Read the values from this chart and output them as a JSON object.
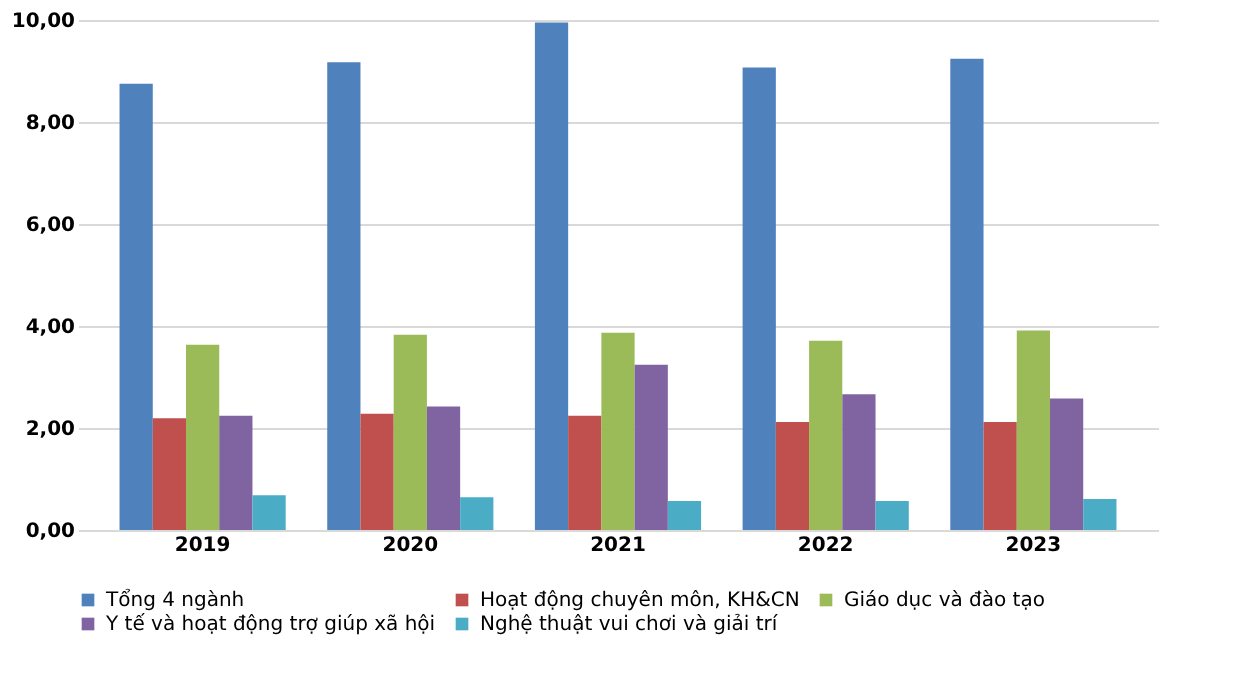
{
  "chart_data": {
    "type": "bar",
    "categories": [
      "2019",
      "2020",
      "2021",
      "2022",
      "2023"
    ],
    "series": [
      {
        "name": "Tổng 4 ngành",
        "color": "#4f81bd",
        "values": [
          8.75,
          9.17,
          9.95,
          9.07,
          9.24
        ]
      },
      {
        "name": "Hoạt động chuyên môn, KH&CN",
        "color": "#c0504d",
        "values": [
          2.19,
          2.28,
          2.24,
          2.12,
          2.12
        ]
      },
      {
        "name": "Giáo dục và đào tạo",
        "color": "#9bbb59",
        "values": [
          3.63,
          3.83,
          3.87,
          3.71,
          3.91
        ]
      },
      {
        "name": "Y tế và hoạt động trợ giúp xã hội",
        "color": "#8064a2",
        "values": [
          2.24,
          2.42,
          3.24,
          2.66,
          2.58
        ]
      },
      {
        "name": "Nghệ thuật vui chơi và giải trí",
        "color": "#4bacc6",
        "values": [
          0.68,
          0.64,
          0.57,
          0.57,
          0.61
        ]
      }
    ],
    "ylim": [
      0,
      10
    ],
    "yticks": [
      {
        "value": 0,
        "label": "0,00"
      },
      {
        "value": 2,
        "label": "2,00"
      },
      {
        "value": 4,
        "label": "4,00"
      },
      {
        "value": 6,
        "label": "6,00"
      },
      {
        "value": 8,
        "label": "8,00"
      },
      {
        "value": 10,
        "label": "10,00"
      }
    ],
    "grid": "y",
    "legend": "bottom"
  }
}
